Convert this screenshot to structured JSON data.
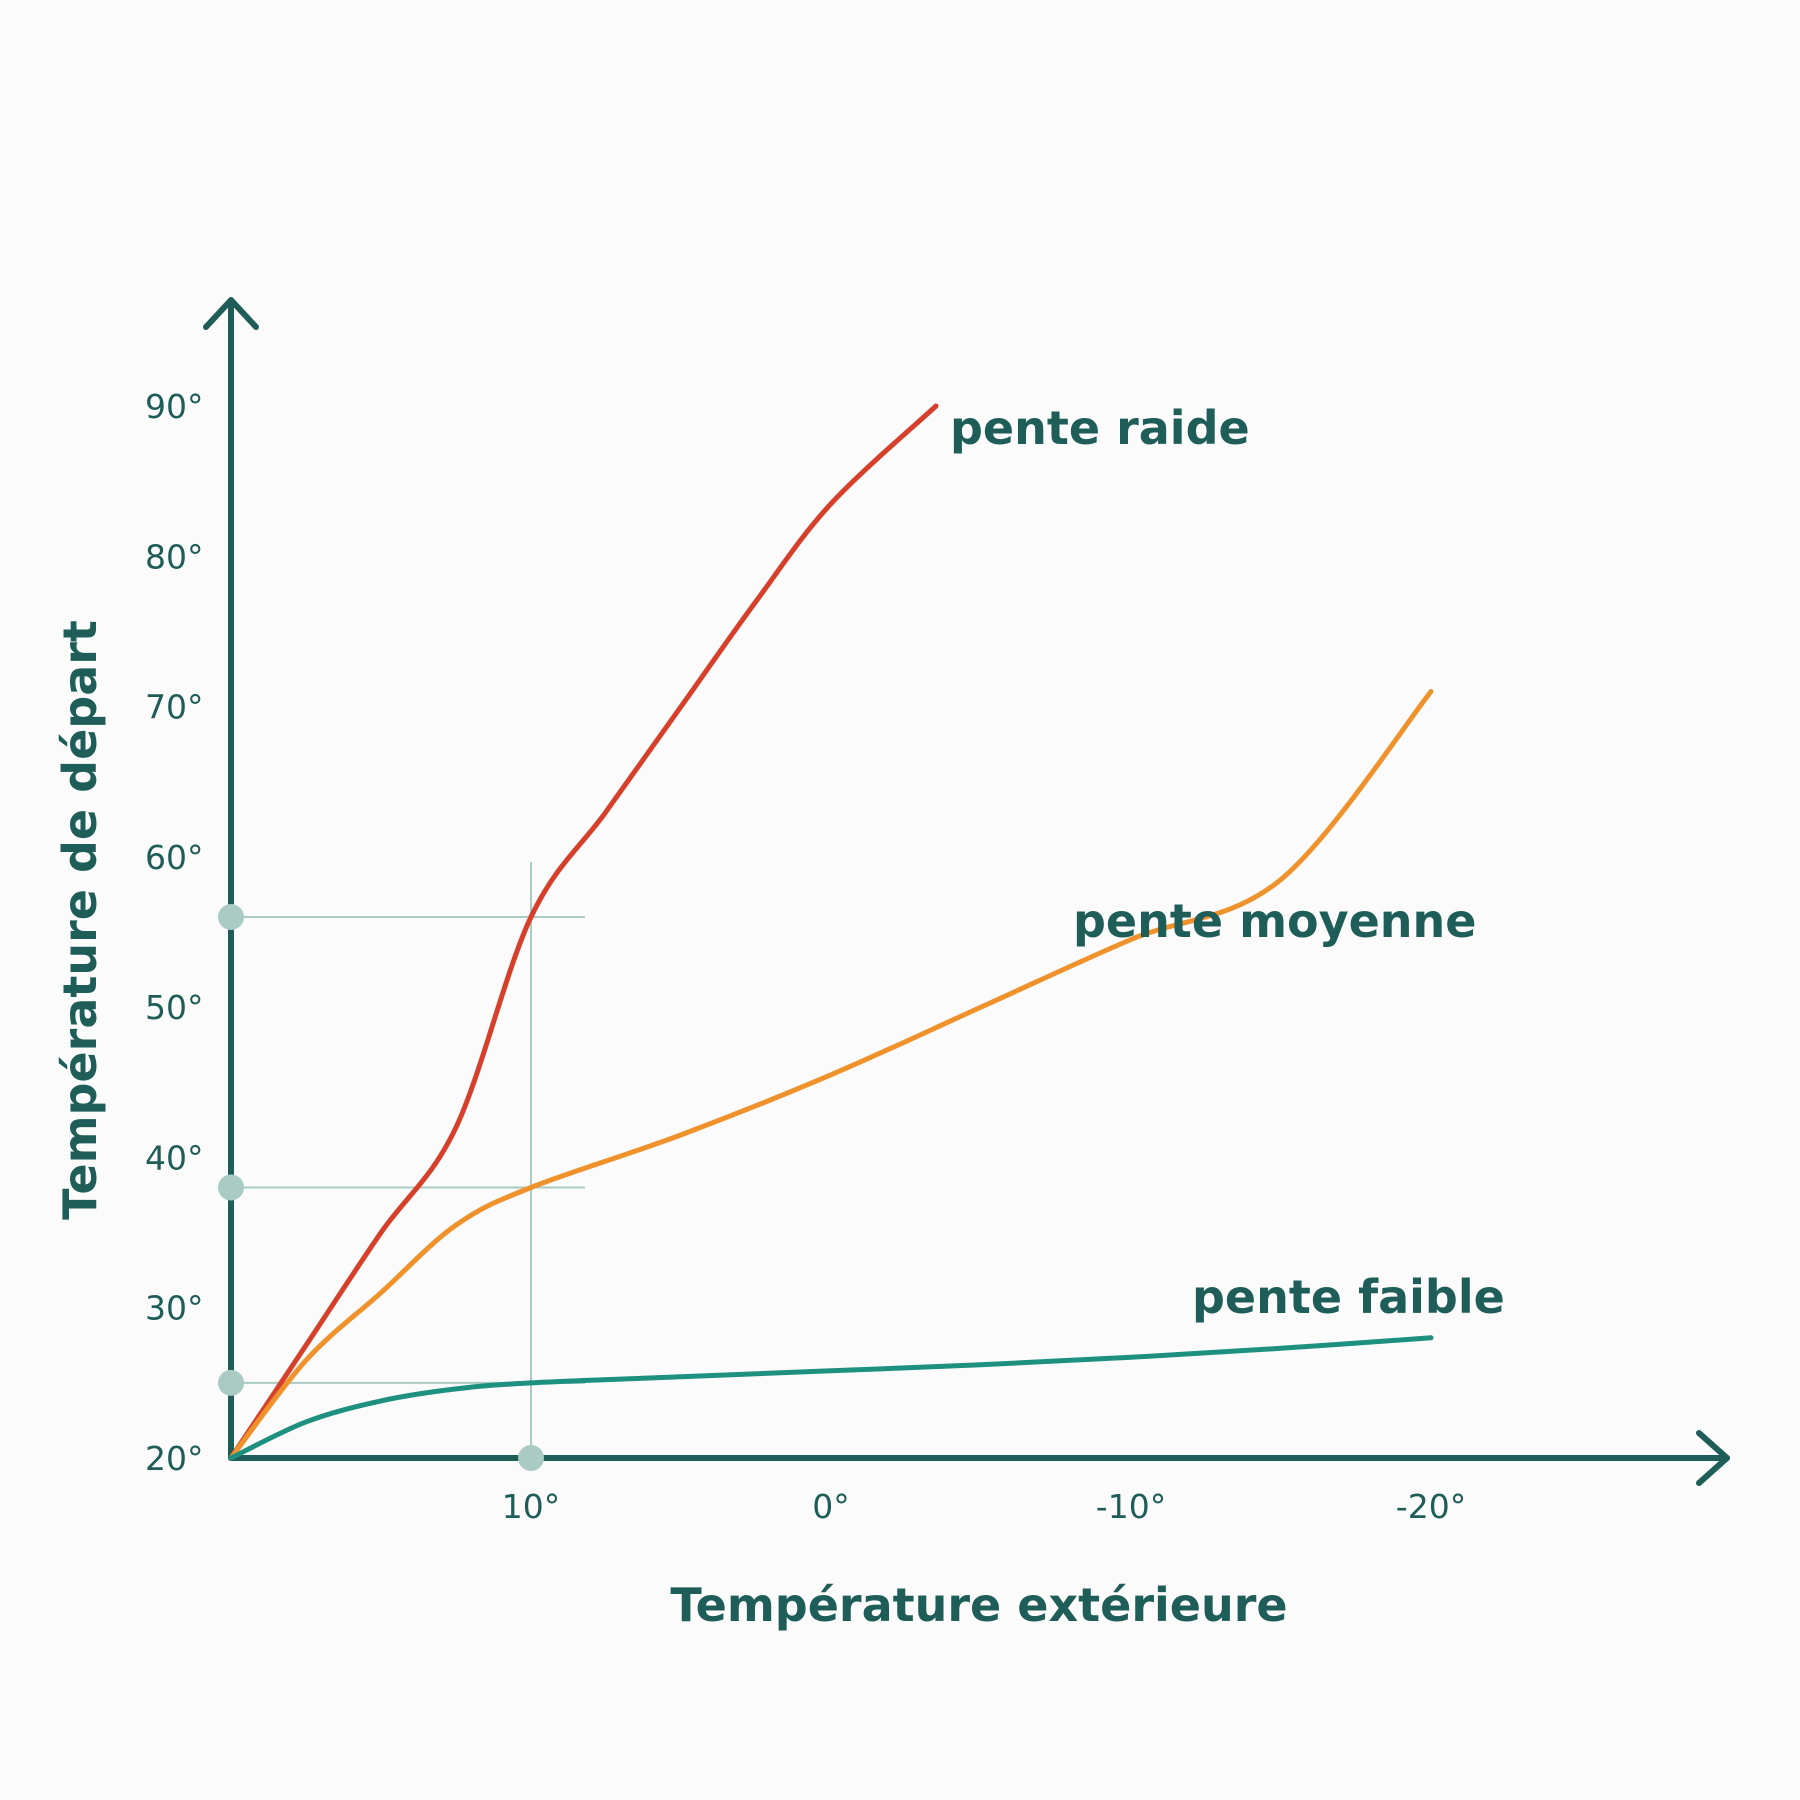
{
  "chart_data": {
    "type": "line",
    "xlabel": "Température extérieure",
    "ylabel": "Température de départ",
    "x_ticks": [
      {
        "value": 10,
        "label": "10°"
      },
      {
        "value": 0,
        "label": "0°"
      },
      {
        "value": -10,
        "label": "-10°"
      },
      {
        "value": -20,
        "label": "-20°"
      }
    ],
    "y_ticks": [
      {
        "value": 20,
        "label": "20°"
      },
      {
        "value": 30,
        "label": "30°"
      },
      {
        "value": 40,
        "label": "40°"
      },
      {
        "value": 50,
        "label": "50°"
      },
      {
        "value": 60,
        "label": "60°"
      },
      {
        "value": 70,
        "label": "70°"
      },
      {
        "value": 80,
        "label": "80°"
      },
      {
        "value": 90,
        "label": "90°"
      }
    ],
    "xlim": [
      20,
      -20
    ],
    "ylim": [
      20,
      90
    ],
    "x_axis_reversed": true,
    "grid": false,
    "series": [
      {
        "name": "pente raide",
        "color": "#d6402b",
        "x": [
          20,
          17.5,
          15,
          12.5,
          10,
          7.5,
          5,
          2.5,
          0,
          -3.5
        ],
        "y": [
          20,
          27.5,
          35,
          42,
          56,
          63,
          70,
          77,
          83.5,
          90
        ]
      },
      {
        "name": "pente moyenne",
        "color": "#f0922b",
        "x": [
          20,
          17.5,
          15,
          12.5,
          10,
          5,
          0,
          -5,
          -10,
          -15,
          -20
        ],
        "y": [
          20,
          26.5,
          31,
          35.5,
          38,
          41.5,
          45.5,
          50,
          54.5,
          58.5,
          71
        ]
      },
      {
        "name": "pente faible",
        "color": "#1e9080",
        "x": [
          20,
          17.5,
          15,
          12.5,
          10,
          5,
          0,
          -5,
          -10,
          -15,
          -20
        ],
        "y": [
          20,
          22.4,
          23.8,
          24.6,
          25,
          25.4,
          25.8,
          26.2,
          26.7,
          27.3,
          28
        ]
      }
    ],
    "reference_lines": [
      {
        "axis": "x",
        "value": 10
      },
      {
        "axis": "y",
        "value": 56
      },
      {
        "axis": "y",
        "value": 38
      },
      {
        "axis": "y",
        "value": 25
      }
    ],
    "reference_markers": [
      {
        "axis": "y",
        "value": 56
      },
      {
        "axis": "y",
        "value": 38
      },
      {
        "axis": "y",
        "value": 25
      },
      {
        "axis": "x",
        "value": 10
      }
    ],
    "colors": {
      "axis": "#1f5d58",
      "reference": "#a9cbc4",
      "text": "#1f5d58"
    }
  }
}
